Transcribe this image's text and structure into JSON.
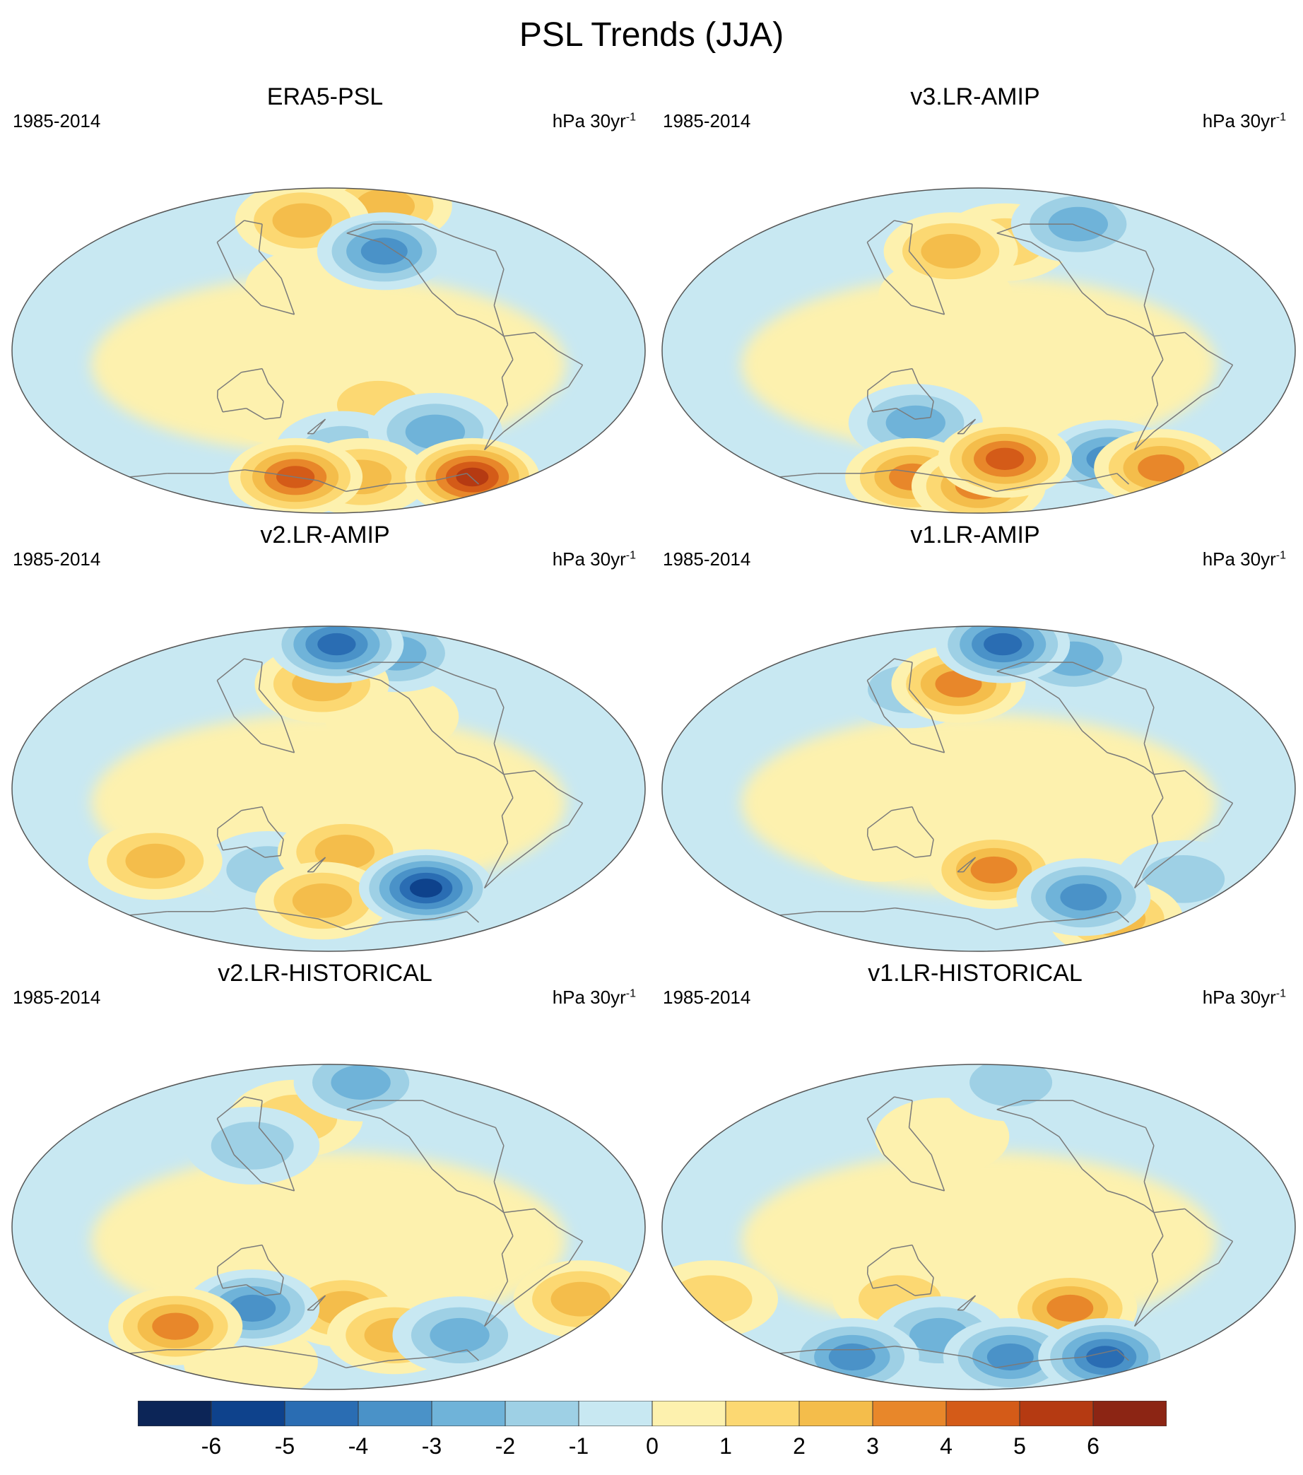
{
  "title": "PSL Trends (JJA)",
  "panels": [
    {
      "name": "ERA5-PSL",
      "period": "1985-2014",
      "units_base": "hPa 30yr",
      "units_sup": "-1"
    },
    {
      "name": "v3.LR-AMIP",
      "period": "1985-2014",
      "units_base": "hPa 30yr",
      "units_sup": "-1"
    },
    {
      "name": "v2.LR-AMIP",
      "period": "1985-2014",
      "units_base": "hPa 30yr",
      "units_sup": "-1"
    },
    {
      "name": "v1.LR-AMIP",
      "period": "1985-2014",
      "units_base": "hPa 30yr",
      "units_sup": "-1"
    },
    {
      "name": "v2.LR-HISTORICAL",
      "period": "1985-2014",
      "units_base": "hPa 30yr",
      "units_sup": "-1"
    },
    {
      "name": "v1.LR-HISTORICAL",
      "period": "1985-2014",
      "units_base": "hPa 30yr",
      "units_sup": "-1"
    }
  ],
  "colorbar": {
    "labels": [
      "-6",
      "-5",
      "-4",
      "-3",
      "-2",
      "-1",
      "0",
      "1",
      "2",
      "3",
      "4",
      "5",
      "6"
    ],
    "colors": [
      "#0c2557",
      "#0e428c",
      "#2a6db3",
      "#4a92c8",
      "#6fb3d9",
      "#9ed0e5",
      "#c8e8f2",
      "#fdf1ae",
      "#fcd872",
      "#f4bd4b",
      "#e8872a",
      "#d45b18",
      "#b53a12",
      "#8c2514"
    ]
  },
  "anomalies": [
    [
      {
        "lon": -150,
        "lat": 70,
        "v": -3
      },
      {
        "lon": -110,
        "lat": 80,
        "v": 3
      },
      {
        "lon": 155,
        "lat": 72,
        "v": 3
      },
      {
        "lon": -140,
        "lat": 55,
        "v": -4
      },
      {
        "lon": 170,
        "lat": 35,
        "v": 1
      },
      {
        "lon": -150,
        "lat": -30,
        "v": 2
      },
      {
        "lon": 150,
        "lat": -30,
        "v": 1
      },
      {
        "lon": -110,
        "lat": -45,
        "v": -3
      },
      {
        "lon": -170,
        "lat": -55,
        "v": -2
      },
      {
        "lon": 150,
        "lat": -70,
        "v": 5
      },
      {
        "lon": -50,
        "lat": -70,
        "v": 6
      },
      {
        "lon": -150,
        "lat": -70,
        "v": 3
      }
    ],
    [
      {
        "lon": -90,
        "lat": 70,
        "v": -3
      },
      {
        "lon": 160,
        "lat": 55,
        "v": 3
      },
      {
        "lon": -160,
        "lat": 60,
        "v": 2
      },
      {
        "lon": 160,
        "lat": 30,
        "v": 1
      },
      {
        "lon": 140,
        "lat": -40,
        "v": -3
      },
      {
        "lon": -160,
        "lat": -60,
        "v": 5
      },
      {
        "lon": -80,
        "lat": -60,
        "v": -4
      },
      {
        "lon": -30,
        "lat": -65,
        "v": 4
      },
      {
        "lon": 120,
        "lat": -70,
        "v": 4
      },
      {
        "lon": -180,
        "lat": -75,
        "v": 4
      }
    ],
    [
      {
        "lon": -170,
        "lat": 80,
        "v": -5
      },
      {
        "lon": -110,
        "lat": 75,
        "v": -3
      },
      {
        "lon": 175,
        "lat": 58,
        "v": 3
      },
      {
        "lon": -140,
        "lat": 40,
        "v": 1
      },
      {
        "lon": 70,
        "lat": -40,
        "v": 3
      },
      {
        "lon": 140,
        "lat": -45,
        "v": -2
      },
      {
        "lon": -170,
        "lat": -35,
        "v": 3
      },
      {
        "lon": 175,
        "lat": -62,
        "v": 3
      },
      {
        "lon": -110,
        "lat": -55,
        "v": -6
      }
    ],
    [
      {
        "lon": -150,
        "lat": 80,
        "v": -5
      },
      {
        "lon": -90,
        "lat": 72,
        "v": -3
      },
      {
        "lon": 165,
        "lat": 58,
        "v": 4
      },
      {
        "lon": 130,
        "lat": 55,
        "v": -2
      },
      {
        "lon": -170,
        "lat": -45,
        "v": 4
      },
      {
        "lon": 120,
        "lat": -30,
        "v": 1
      },
      {
        "lon": -100,
        "lat": -60,
        "v": -4
      },
      {
        "lon": -40,
        "lat": -50,
        "v": -2
      },
      {
        "lon": -50,
        "lat": -72,
        "v": 3
      }
    ],
    [
      {
        "lon": -140,
        "lat": 80,
        "v": -3
      },
      {
        "lon": 155,
        "lat": 60,
        "v": 2
      },
      {
        "lon": 130,
        "lat": 45,
        "v": -2
      },
      {
        "lon": 130,
        "lat": -45,
        "v": -4
      },
      {
        "lon": 70,
        "lat": -55,
        "v": 4
      },
      {
        "lon": -170,
        "lat": -45,
        "v": 3
      },
      {
        "lon": -130,
        "lat": -60,
        "v": 3
      },
      {
        "lon": -20,
        "lat": -40,
        "v": 3
      },
      {
        "lon": -80,
        "lat": -60,
        "v": -3
      },
      {
        "lon": 100,
        "lat": -75,
        "v": 1
      }
    ],
    [
      {
        "lon": -140,
        "lat": 80,
        "v": -2
      },
      {
        "lon": 155,
        "lat": 50,
        "v": 1
      },
      {
        "lon": 130,
        "lat": -40,
        "v": 2
      },
      {
        "lon": -120,
        "lat": -45,
        "v": 4
      },
      {
        "lon": 150,
        "lat": -60,
        "v": -3
      },
      {
        "lon": 60,
        "lat": -72,
        "v": -4
      },
      {
        "lon": -60,
        "lat": -72,
        "v": -5
      },
      {
        "lon": -150,
        "lat": -72,
        "v": -4
      },
      {
        "lon": 10,
        "lat": -40,
        "v": 2
      }
    ]
  ]
}
